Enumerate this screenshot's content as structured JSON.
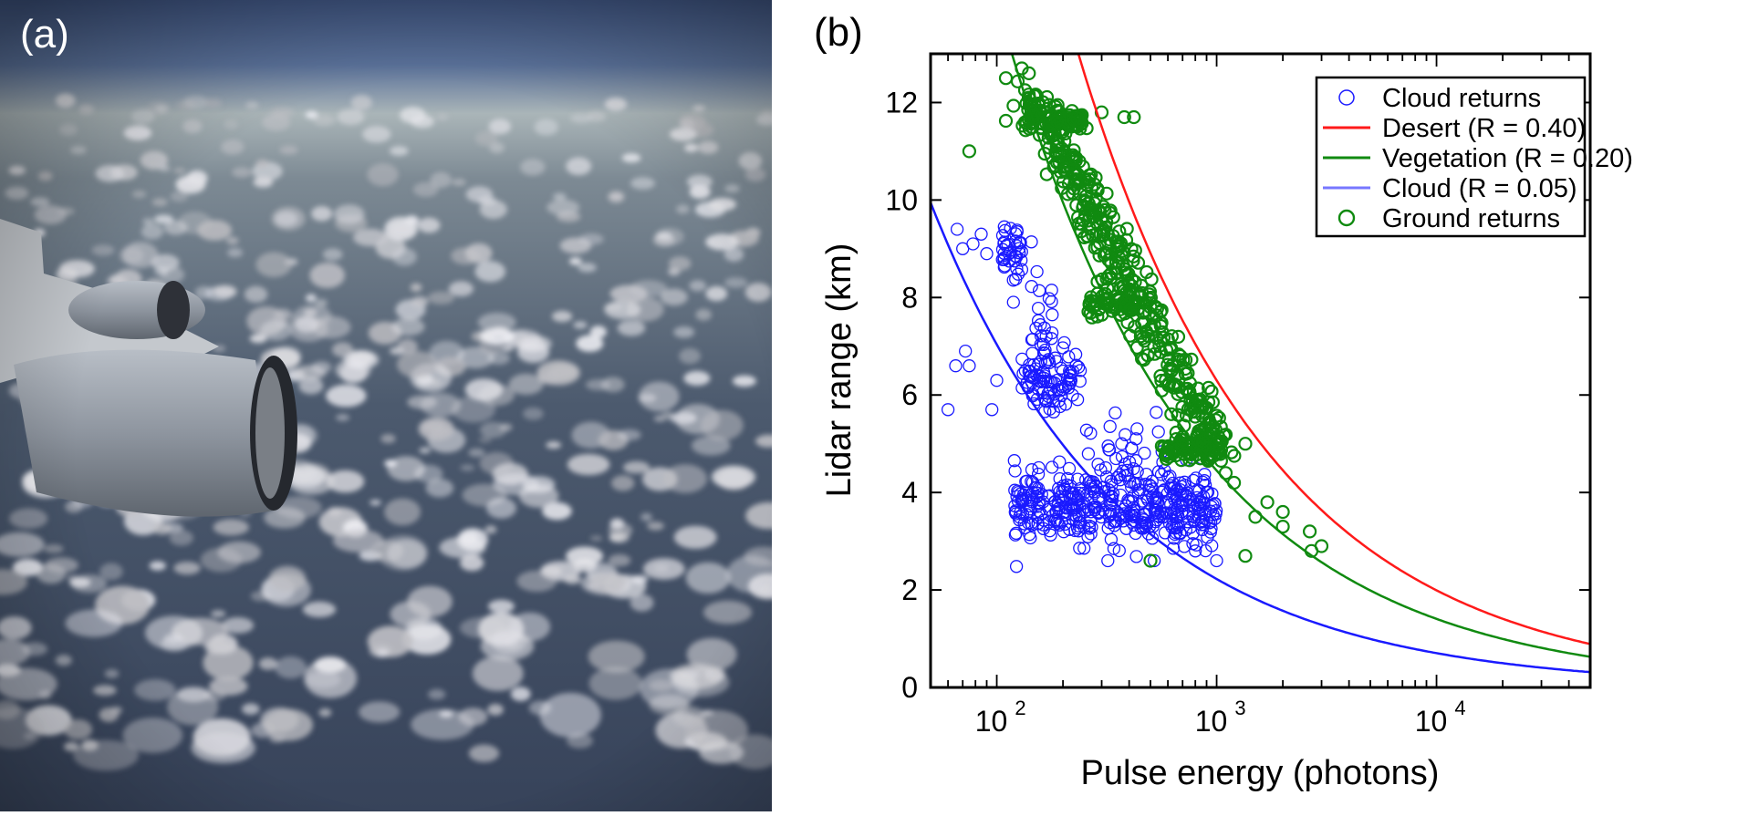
{
  "panels": {
    "a_label": "(a)",
    "b_label": "(b)"
  },
  "photo": {
    "description_icon": "aerial-photo-icon"
  },
  "chart_data": {
    "type": "scatter",
    "xlabel": "Pulse energy (photons)",
    "ylabel": "Lidar range (km)",
    "xscale": "log",
    "xlim": [
      50,
      50000
    ],
    "ylim": [
      0,
      13
    ],
    "x_ticks": [
      {
        "value": 100,
        "base": "10",
        "exp": "2"
      },
      {
        "value": 1000,
        "base": "10",
        "exp": "3"
      },
      {
        "value": 10000,
        "base": "10",
        "exp": "4"
      }
    ],
    "y_ticks": [
      "0",
      "2",
      "4",
      "6",
      "8",
      "10",
      "12"
    ],
    "legend_position": "top-right",
    "legend": [
      {
        "label": "Cloud returns",
        "kind": "marker",
        "color": "#1a1aff"
      },
      {
        "label": "Desert (R = 0.40)",
        "kind": "line",
        "color": "#ff1a1a"
      },
      {
        "label": "Vegetation (R = 0.20)",
        "kind": "line",
        "color": "#108a10"
      },
      {
        "label": "Cloud (R = 0.05)",
        "kind": "line",
        "color": "#7777ff"
      },
      {
        "label": "Ground returns",
        "kind": "marker",
        "color": "#108a10"
      }
    ],
    "curves": [
      {
        "name": "Desert (R = 0.40)",
        "color": "#ff1a1a",
        "x_at_1km": 39700
      },
      {
        "name": "Vegetation (R = 0.20)",
        "color": "#108a10",
        "x_at_1km": 19800
      },
      {
        "name": "Cloud (R = 0.05)",
        "color": "#1a1aff",
        "x_at_1km": 4950
      }
    ],
    "series": [
      {
        "name": "Cloud returns",
        "color": "#1a1aff",
        "clusters": [
          {
            "x_min": 120,
            "x_max": 1000,
            "y_center": 3.7,
            "y_spread": 0.35,
            "count": 420
          },
          {
            "x_min": 130,
            "x_max": 240,
            "y_center": 6.3,
            "y_spread": 0.35,
            "count": 90
          },
          {
            "x_min": 105,
            "x_max": 130,
            "y_center": 8.9,
            "y_spread": 0.35,
            "count": 40
          },
          {
            "x_min": 140,
            "x_max": 180,
            "y_center": 7.3,
            "y_spread": 0.6,
            "count": 25
          },
          {
            "x_min": 250,
            "x_max": 600,
            "y_center": 4.8,
            "y_spread": 0.35,
            "count": 30
          }
        ],
        "points": [
          {
            "x": 60,
            "y": 5.7
          },
          {
            "x": 65,
            "y": 6.6
          },
          {
            "x": 72,
            "y": 6.9
          },
          {
            "x": 75,
            "y": 6.6
          },
          {
            "x": 66,
            "y": 9.4
          },
          {
            "x": 70,
            "y": 9.0
          },
          {
            "x": 78,
            "y": 9.1
          },
          {
            "x": 85,
            "y": 9.3
          },
          {
            "x": 90,
            "y": 8.9
          },
          {
            "x": 95,
            "y": 5.7
          },
          {
            "x": 100,
            "y": 6.3
          },
          {
            "x": 520,
            "y": 2.6
          },
          {
            "x": 1000,
            "y": 2.6
          },
          {
            "x": 800,
            "y": 2.8
          },
          {
            "x": 320,
            "y": 2.6
          },
          {
            "x": 430,
            "y": 5.1
          },
          {
            "x": 370,
            "y": 5.0
          }
        ]
      },
      {
        "name": "Ground returns",
        "color": "#108a10",
        "clusters": [
          {
            "x_min": 135,
            "x_max": 260,
            "y_center": 11.65,
            "y_spread": 0.12,
            "count": 70
          },
          {
            "x_min": 260,
            "x_max": 450,
            "y_center": 7.85,
            "y_spread": 0.15,
            "count": 60
          },
          {
            "x_min": 560,
            "x_max": 1050,
            "y_center": 4.9,
            "y_spread": 0.12,
            "count": 90
          }
        ],
        "points": [
          {
            "x": 75,
            "y": 11.0
          },
          {
            "x": 110,
            "y": 12.5
          },
          {
            "x": 130,
            "y": 12.7
          },
          {
            "x": 140,
            "y": 12.6
          },
          {
            "x": 300,
            "y": 11.8
          },
          {
            "x": 380,
            "y": 11.7
          },
          {
            "x": 420,
            "y": 11.7
          },
          {
            "x": 500,
            "y": 7.8
          },
          {
            "x": 1350,
            "y": 5.0
          },
          {
            "x": 1350,
            "y": 2.7
          },
          {
            "x": 2700,
            "y": 2.8
          },
          {
            "x": 3000,
            "y": 2.9
          },
          {
            "x": 2650,
            "y": 3.2
          },
          {
            "x": 2000,
            "y": 3.3
          },
          {
            "x": 500,
            "y": 2.6
          },
          {
            "x": 2000,
            "y": 3.6
          },
          {
            "x": 1700,
            "y": 3.8
          },
          {
            "x": 1500,
            "y": 3.5
          },
          {
            "x": 1200,
            "y": 4.2
          },
          {
            "x": 1100,
            "y": 4.4
          }
        ]
      }
    ]
  }
}
